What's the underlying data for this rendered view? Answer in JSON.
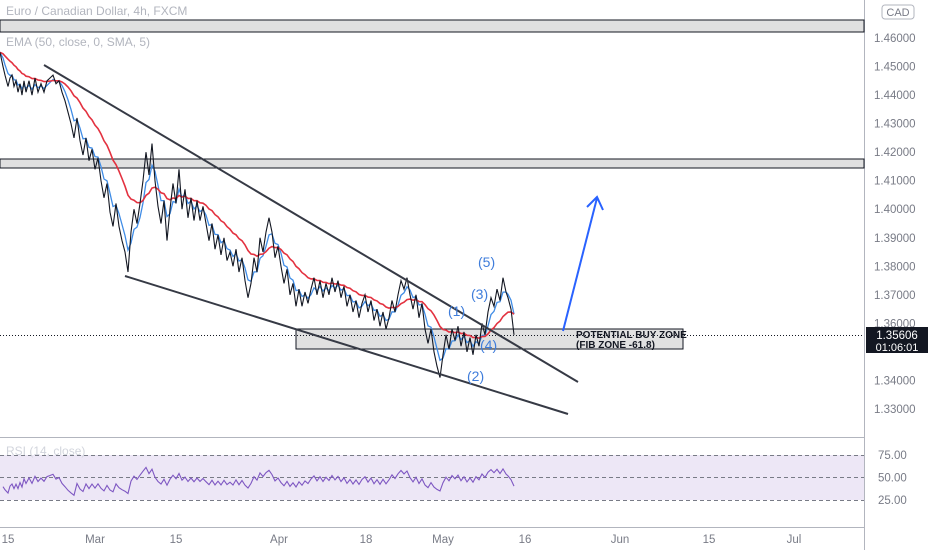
{
  "header": {
    "symbol_title": "Euro / Canadian Dollar, 4h, FXCM",
    "indicator_label": "EMA (50, close, 0, SMA, 5)",
    "rsi_label": "RSI (14, close)",
    "currency_button": "CAD"
  },
  "price_axis": {
    "ticks": [
      "1.46000",
      "1.45000",
      "1.44000",
      "1.43000",
      "1.42000",
      "1.41000",
      "1.40000",
      "1.39000",
      "1.38000",
      "1.37000",
      "1.36000",
      "1.34000",
      "1.33000"
    ],
    "current_price": "1.35606",
    "countdown": "01:06:01"
  },
  "rsi_axis": {
    "ticks": [
      "75.00",
      "50.00",
      "25.00"
    ]
  },
  "time_axis": {
    "ticks": [
      "15",
      "Mar",
      "15",
      "Apr",
      "18",
      "May",
      "16",
      "Jun",
      "15",
      "Jul"
    ]
  },
  "annotations": {
    "buy_zone_line1": "POTENTIAL BUY ZONE",
    "buy_zone_line2": "(FIB ZONE -61.8)",
    "waves": [
      "(1)",
      "(2)",
      "(3)",
      "(4)",
      "(5)"
    ]
  },
  "colors": {
    "price_line": "#131722",
    "ema_line": "#e33240",
    "fast_line": "#3f8ce6",
    "arrow": "#2962ff",
    "rsi_line": "#7e57c2",
    "rsi_band": "#ede7f6",
    "zone_fill": "#d9d9d9"
  },
  "chart_data": {
    "type": "line",
    "title": "Euro / Canadian Dollar, 4h, FXCM",
    "x_ticks": [
      "15",
      "Mar",
      "15",
      "Apr",
      "18",
      "May",
      "16",
      "Jun",
      "15",
      "Jul"
    ],
    "ylim": [
      1.325,
      1.465
    ],
    "current_price": 1.35606,
    "series": [
      {
        "name": "",
        "points": [
          [
            0,
            1.455
          ],
          [
            3,
            1.45
          ],
          [
            5,
            1.447
          ],
          [
            8,
            1.443
          ],
          [
            10,
            1.446
          ],
          [
            12,
            1.447
          ],
          [
            14,
            1.443
          ],
          [
            16,
            1.445
          ],
          [
            18,
            1.441
          ],
          [
            20,
            1.444
          ],
          [
            22,
            1.44
          ],
          [
            24,
            1.445
          ],
          [
            26,
            1.441
          ],
          [
            29,
            1.445
          ],
          [
            32,
            1.44
          ],
          [
            35,
            1.446
          ],
          [
            38,
            1.441
          ],
          [
            41,
            1.444
          ],
          [
            44,
            1.441
          ],
          [
            47,
            1.445
          ],
          [
            50,
            1.446
          ],
          [
            53,
            1.447
          ],
          [
            56,
            1.444
          ],
          [
            59,
            1.445
          ],
          [
            62,
            1.441
          ],
          [
            65,
            1.438
          ],
          [
            68,
            1.434
          ],
          [
            71,
            1.43
          ],
          [
            74,
            1.425
          ],
          [
            77,
            1.432
          ],
          [
            80,
            1.424
          ],
          [
            83,
            1.419
          ],
          [
            86,
            1.425
          ],
          [
            89,
            1.417
          ],
          [
            92,
            1.421
          ],
          [
            95,
            1.414
          ],
          [
            98,
            1.418
          ],
          [
            101,
            1.41
          ],
          [
            104,
            1.404
          ],
          [
            107,
            1.409
          ],
          [
            110,
            1.399
          ],
          [
            113,
            1.394
          ],
          [
            116,
            1.402
          ],
          [
            119,
            1.394
          ],
          [
            122,
            1.389
          ],
          [
            125,
            1.385
          ],
          [
            128,
            1.378
          ],
          [
            131,
            1.392
          ],
          [
            134,
            1.4
          ],
          [
            137,
            1.395
          ],
          [
            140,
            1.402
          ],
          [
            143,
            1.41
          ],
          [
            146,
            1.42
          ],
          [
            149,
            1.412
          ],
          [
            152,
            1.423
          ],
          [
            155,
            1.41
          ],
          [
            158,
            1.401
          ],
          [
            161,
            1.395
          ],
          [
            164,
            1.403
          ],
          [
            167,
            1.389
          ],
          [
            170,
            1.4
          ],
          [
            173,
            1.409
          ],
          [
            176,
            1.402
          ],
          [
            179,
            1.414
          ],
          [
            182,
            1.4
          ],
          [
            185,
            1.407
          ],
          [
            188,
            1.397
          ],
          [
            191,
            1.404
          ],
          [
            194,
            1.396
          ],
          [
            197,
            1.403
          ],
          [
            200,
            1.396
          ],
          [
            203,
            1.401
          ],
          [
            206,
            1.395
          ],
          [
            209,
            1.389
          ],
          [
            212,
            1.395
          ],
          [
            215,
            1.386
          ],
          [
            218,
            1.391
          ],
          [
            221,
            1.384
          ],
          [
            224,
            1.39
          ],
          [
            227,
            1.382
          ],
          [
            230,
            1.385
          ],
          [
            233,
            1.38
          ],
          [
            236,
            1.386
          ],
          [
            239,
            1.378
          ],
          [
            242,
            1.383
          ],
          [
            245,
            1.375
          ],
          [
            248,
            1.369
          ],
          [
            251,
            1.374
          ],
          [
            254,
            1.383
          ],
          [
            257,
            1.378
          ],
          [
            260,
            1.39
          ],
          [
            263,
            1.385
          ],
          [
            266,
            1.392
          ],
          [
            269,
            1.397
          ],
          [
            272,
            1.392
          ],
          [
            275,
            1.383
          ],
          [
            278,
            1.387
          ],
          [
            281,
            1.38
          ],
          [
            284,
            1.374
          ],
          [
            287,
            1.379
          ],
          [
            290,
            1.37
          ],
          [
            293,
            1.374
          ],
          [
            296,
            1.366
          ],
          [
            299,
            1.372
          ],
          [
            302,
            1.366
          ],
          [
            305,
            1.371
          ],
          [
            308,
            1.367
          ],
          [
            311,
            1.372
          ],
          [
            314,
            1.376
          ],
          [
            317,
            1.37
          ],
          [
            320,
            1.375
          ],
          [
            323,
            1.369
          ],
          [
            326,
            1.374
          ],
          [
            329,
            1.37
          ],
          [
            332,
            1.376
          ],
          [
            335,
            1.371
          ],
          [
            338,
            1.375
          ],
          [
            341,
            1.369
          ],
          [
            344,
            1.373
          ],
          [
            347,
            1.366
          ],
          [
            350,
            1.37
          ],
          [
            353,
            1.364
          ],
          [
            356,
            1.368
          ],
          [
            359,
            1.362
          ],
          [
            362,
            1.367
          ],
          [
            365,
            1.37
          ],
          [
            368,
            1.364
          ],
          [
            371,
            1.368
          ],
          [
            374,
            1.361
          ],
          [
            377,
            1.365
          ],
          [
            380,
            1.359
          ],
          [
            383,
            1.364
          ],
          [
            386,
            1.358
          ],
          [
            389,
            1.362
          ],
          [
            392,
            1.368
          ],
          [
            395,
            1.364
          ],
          [
            398,
            1.37
          ],
          [
            401,
            1.375
          ],
          [
            404,
            1.372
          ],
          [
            407,
            1.376
          ],
          [
            410,
            1.37
          ],
          [
            413,
            1.365
          ],
          [
            416,
            1.37
          ],
          [
            419,
            1.362
          ],
          [
            422,
            1.367
          ],
          [
            425,
            1.358
          ],
          [
            428,
            1.353
          ],
          [
            431,
            1.358
          ],
          [
            434,
            1.35
          ],
          [
            437,
            1.345
          ],
          [
            440,
            1.341
          ],
          [
            443,
            1.349
          ],
          [
            446,
            1.356
          ],
          [
            449,
            1.351
          ],
          [
            452,
            1.358
          ],
          [
            455,
            1.354
          ],
          [
            458,
            1.359
          ],
          [
            461,
            1.352
          ],
          [
            464,
            1.357
          ],
          [
            467,
            1.35
          ],
          [
            470,
            1.355
          ],
          [
            473,
            1.349
          ],
          [
            476,
            1.356
          ],
          [
            479,
            1.352
          ],
          [
            482,
            1.36
          ],
          [
            485,
            1.356
          ],
          [
            488,
            1.364
          ],
          [
            491,
            1.369
          ],
          [
            494,
            1.366
          ],
          [
            497,
            1.372
          ],
          [
            500,
            1.368
          ],
          [
            503,
            1.376
          ],
          [
            506,
            1.371
          ],
          [
            508,
            1.369
          ],
          [
            511,
            1.365
          ],
          [
            514,
            1.356
          ]
        ]
      }
    ]
  }
}
